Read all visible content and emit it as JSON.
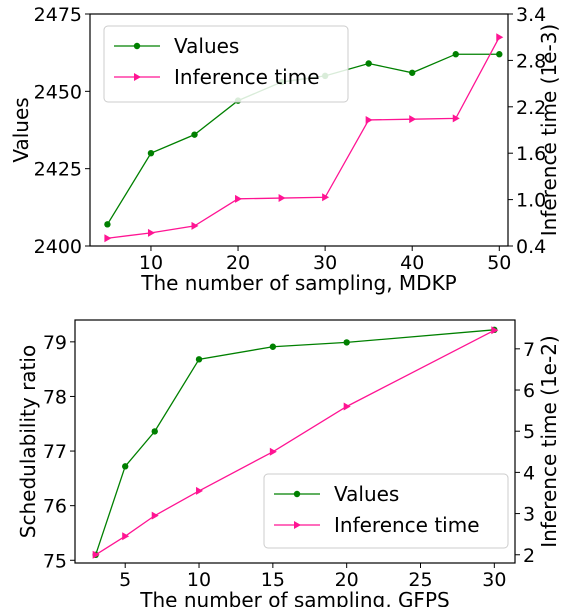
{
  "chart_data": [
    {
      "type": "line",
      "xlabel": "The number of sampling, MDKP",
      "ylabel": "Values",
      "y2label": "Inference time (1e-3)",
      "xlim": [
        3,
        51
      ],
      "ylim": [
        2400,
        2475
      ],
      "y2lim": [
        0.4,
        3.4
      ],
      "xticks": [
        10,
        20,
        30,
        40,
        50
      ],
      "yticks": [
        2400,
        2425,
        2450,
        2475
      ],
      "y2ticks": [
        0.4,
        1.0,
        1.6,
        2.2,
        2.8,
        3.4
      ],
      "grid": false,
      "legend_position": "top-left",
      "series": [
        {
          "name": "Values",
          "axis": "left",
          "color": "#008000",
          "marker": "circle",
          "x": [
            5,
            10,
            15,
            20,
            25,
            30,
            35,
            40,
            45,
            50
          ],
          "values": [
            2407,
            2430,
            2436,
            2447,
            2453,
            2455,
            2459,
            2456,
            2462,
            2462
          ]
        },
        {
          "name": "Inference time",
          "axis": "right",
          "color": "#ff1493",
          "marker": "triangle-right",
          "x": [
            5,
            10,
            15,
            20,
            25,
            30,
            35,
            40,
            45,
            50
          ],
          "values": [
            0.5,
            0.57,
            0.66,
            1.01,
            1.02,
            1.03,
            2.03,
            2.04,
            2.05,
            3.1
          ]
        }
      ]
    },
    {
      "type": "line",
      "xlabel": "The number of sampling, GFPS",
      "ylabel": "Schedulability ratio",
      "y2label": "Inference time (1e-2)",
      "xlim": [
        1.6,
        31.4
      ],
      "ylim": [
        74.95,
        79.4
      ],
      "y2lim": [
        1.8,
        7.7
      ],
      "xticks": [
        5,
        10,
        15,
        20,
        25,
        30
      ],
      "yticks": [
        75,
        76,
        77,
        78,
        79
      ],
      "y2ticks": [
        2,
        3,
        4,
        5,
        6,
        7
      ],
      "grid": false,
      "legend_position": "bottom-right",
      "series": [
        {
          "name": "Values",
          "axis": "left",
          "color": "#008000",
          "marker": "circle",
          "x": [
            3,
            5,
            7,
            10,
            15,
            20,
            30
          ],
          "values": [
            75.1,
            76.72,
            77.36,
            78.68,
            78.91,
            78.99,
            79.22
          ]
        },
        {
          "name": "Inference time",
          "axis": "right",
          "color": "#ff1493",
          "marker": "triangle-right",
          "x": [
            3,
            5,
            7,
            10,
            15,
            20,
            30
          ],
          "values": [
            2.0,
            2.45,
            2.95,
            3.55,
            4.5,
            5.6,
            7.45
          ]
        }
      ]
    }
  ]
}
